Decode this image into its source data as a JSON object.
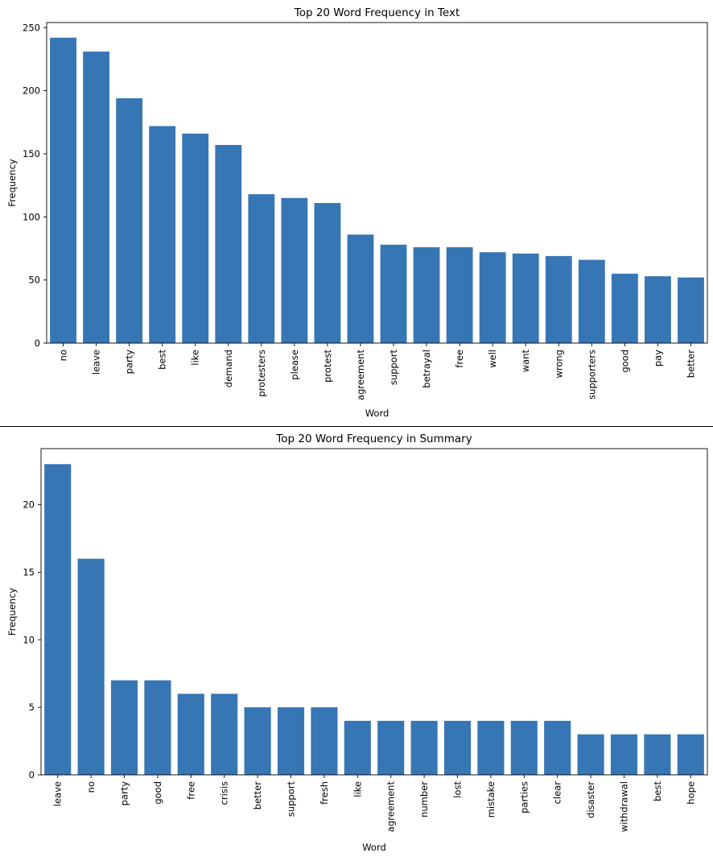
{
  "chart_data": [
    {
      "type": "bar",
      "title": "Top 20 Word Frequency in Text",
      "xlabel": "Word",
      "ylabel": "Frequency",
      "ylim": [
        0,
        254
      ],
      "yticks": [
        0,
        50,
        100,
        150,
        200,
        250
      ],
      "grid": false,
      "color": "#3776b4",
      "categories": [
        "no",
        "leave",
        "party",
        "best",
        "like",
        "demand",
        "protesters",
        "please",
        "protest",
        "agreement",
        "support",
        "betrayal",
        "free",
        "well",
        "want",
        "wrong",
        "supporters",
        "good",
        "pay",
        "better"
      ],
      "values": [
        242,
        231,
        194,
        172,
        166,
        157,
        118,
        115,
        111,
        86,
        78,
        76,
        76,
        72,
        71,
        69,
        66,
        55,
        53,
        52
      ]
    },
    {
      "type": "bar",
      "title": "Top 20 Word Frequency in Summary",
      "xlabel": "Word",
      "ylabel": "Frequency",
      "ylim": [
        0,
        24.15
      ],
      "yticks": [
        0,
        5,
        10,
        15,
        20
      ],
      "grid": false,
      "color": "#3776b4",
      "categories": [
        "leave",
        "no",
        "party",
        "good",
        "free",
        "crisis",
        "better",
        "support",
        "fresh",
        "like",
        "agreement",
        "number",
        "lost",
        "mistake",
        "parties",
        "clear",
        "disaster",
        "withdrawal",
        "best",
        "hope"
      ],
      "values": [
        23,
        16,
        7,
        7,
        6,
        6,
        5,
        5,
        5,
        4,
        4,
        4,
        4,
        4,
        4,
        4,
        3,
        3,
        3,
        3
      ]
    }
  ]
}
